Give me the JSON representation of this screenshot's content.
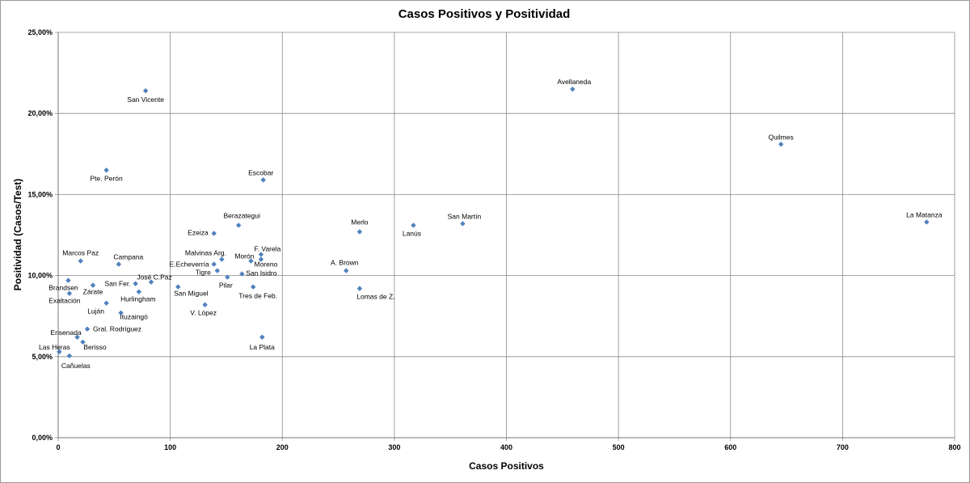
{
  "chart_data": {
    "type": "scatter",
    "title": "Casos Positivos y Positividad",
    "xlabel": "Casos Positivos",
    "ylabel": "Positividad (Casos/Test)",
    "xlim": [
      0,
      800
    ],
    "ylim": [
      0,
      25
    ],
    "x_ticks": [
      "0",
      "100",
      "200",
      "300",
      "400",
      "500",
      "600",
      "700",
      "800"
    ],
    "y_ticks": [
      "0,00%",
      "5,00%",
      "10,00%",
      "15,00%",
      "20,00%",
      "25,00%"
    ],
    "grid": true,
    "marker_color": "#4f81bd",
    "points": [
      {
        "label": "San Vicente",
        "x": 78,
        "y": 21.4
      },
      {
        "label": "Avellaneda",
        "x": 459,
        "y": 21.5
      },
      {
        "label": "Quilmes",
        "x": 645,
        "y": 18.1
      },
      {
        "label": "Pte. Perón",
        "x": 43,
        "y": 16.5
      },
      {
        "label": "Escobar",
        "x": 183,
        "y": 15.9
      },
      {
        "label": "La Matanza",
        "x": 775,
        "y": 13.3
      },
      {
        "label": "San Martín",
        "x": 361,
        "y": 13.2
      },
      {
        "label": "Lanús",
        "x": 317,
        "y": 13.1
      },
      {
        "label": "Merlo",
        "x": 269,
        "y": 12.7
      },
      {
        "label": "Berazategui",
        "x": 161,
        "y": 13.1
      },
      {
        "label": "Ezeiza",
        "x": 139,
        "y": 12.6
      },
      {
        "label": "F. Varela",
        "x": 181,
        "y": 11.3
      },
      {
        "label": "Moreno",
        "x": 181,
        "y": 11.0
      },
      {
        "label": "Morón",
        "x": 172,
        "y": 10.9
      },
      {
        "label": "Malvinas Arg.",
        "x": 146,
        "y": 11.0
      },
      {
        "label": "E.Echeverría",
        "x": 139,
        "y": 10.7
      },
      {
        "label": "Tigre",
        "x": 142,
        "y": 10.3
      },
      {
        "label": "Pilar",
        "x": 151,
        "y": 9.9
      },
      {
        "label": "San Isidro",
        "x": 164,
        "y": 10.1
      },
      {
        "label": "A. Brown",
        "x": 257,
        "y": 10.3
      },
      {
        "label": "Lomas de Z.",
        "x": 269,
        "y": 9.2
      },
      {
        "label": "Tres de Feb.",
        "x": 174,
        "y": 9.3
      },
      {
        "label": "San Miguel",
        "x": 107,
        "y": 9.3
      },
      {
        "label": "V. López",
        "x": 131,
        "y": 8.2
      },
      {
        "label": "La Plata",
        "x": 182,
        "y": 6.2
      },
      {
        "label": "Marcos Paz",
        "x": 20,
        "y": 10.9
      },
      {
        "label": "Campana",
        "x": 54,
        "y": 10.7
      },
      {
        "label": "José C.Paz",
        "x": 83,
        "y": 9.6
      },
      {
        "label": "San Fer.",
        "x": 69,
        "y": 9.5
      },
      {
        "label": "Hurlingham",
        "x": 72,
        "y": 9.0
      },
      {
        "label": "Brandsen",
        "x": 9,
        "y": 9.7
      },
      {
        "label": "Zárate",
        "x": 31,
        "y": 9.4
      },
      {
        "label": "Exaltación",
        "x": 10,
        "y": 8.9
      },
      {
        "label": "Luján",
        "x": 43,
        "y": 8.3
      },
      {
        "label": "Ituzaingó",
        "x": 56,
        "y": 7.7
      },
      {
        "label": "Gral. Rodríguez",
        "x": 26,
        "y": 6.7
      },
      {
        "label": "Ensenada",
        "x": 17,
        "y": 6.2
      },
      {
        "label": "Berisso",
        "x": 22,
        "y": 5.9
      },
      {
        "label": "Las Heras",
        "x": 1,
        "y": 5.3
      },
      {
        "label": "Cañuelas",
        "x": 10,
        "y": 5.05
      }
    ]
  }
}
